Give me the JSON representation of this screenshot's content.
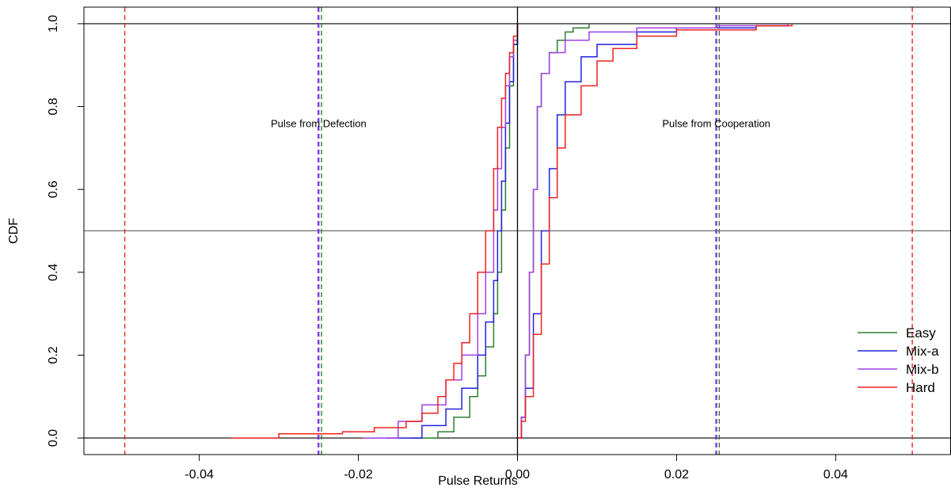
{
  "chart_data": {
    "type": "line",
    "title": "",
    "xlabel": "Pulse Returns",
    "ylabel": "CDF",
    "xlim": [
      -0.0545,
      0.0545
    ],
    "ylim": [
      -0.04,
      1.04
    ],
    "x_ticks": [
      -0.04,
      -0.02,
      0.0,
      0.02,
      0.04
    ],
    "x_tick_labels": [
      "-0.04",
      "-0.02",
      "0.00",
      "0.02",
      "0.04"
    ],
    "y_ticks": [
      0.0,
      0.2,
      0.4,
      0.6,
      0.8,
      1.0
    ],
    "y_tick_labels": [
      "0.0",
      "0.2",
      "0.4",
      "0.6",
      "0.8",
      "1.0"
    ],
    "grid": false,
    "legend_position": "bottom-right",
    "reference_lines": {
      "horizontal": [
        0.0,
        0.5,
        1.0
      ],
      "vertical_solid": [
        0.0
      ]
    },
    "annotations": [
      {
        "text": "Pulse from Defection",
        "x": -0.025,
        "y": 0.75
      },
      {
        "text": "Pulse from Cooperation",
        "x": 0.025,
        "y": 0.75
      }
    ],
    "series": [
      {
        "name": "Easy",
        "color": "#2e7d2e",
        "step": true,
        "neg": [
          [
            -0.0135,
            0.0
          ],
          [
            -0.01,
            0.015
          ],
          [
            -0.008,
            0.05
          ],
          [
            -0.006,
            0.1
          ],
          [
            -0.005,
            0.15
          ],
          [
            -0.004,
            0.22
          ],
          [
            -0.003,
            0.3
          ],
          [
            -0.0025,
            0.4
          ],
          [
            -0.002,
            0.55
          ],
          [
            -0.0015,
            0.7
          ],
          [
            -0.001,
            0.85
          ],
          [
            -0.0005,
            0.95
          ],
          [
            0.0,
            1.0
          ]
        ],
        "pos": [
          [
            0.0,
            0.0
          ],
          [
            0.0005,
            0.05
          ],
          [
            0.001,
            0.2
          ],
          [
            0.0015,
            0.4
          ],
          [
            0.002,
            0.6
          ],
          [
            0.0025,
            0.8
          ],
          [
            0.003,
            0.88
          ],
          [
            0.004,
            0.93
          ],
          [
            0.005,
            0.96
          ],
          [
            0.006,
            0.98
          ],
          [
            0.007,
            0.99
          ],
          [
            0.009,
            1.0
          ]
        ],
        "vlines": [
          -0.0245,
          0.0255
        ]
      },
      {
        "name": "Mix-a",
        "color": "#2222dd",
        "step": true,
        "neg": [
          [
            -0.0165,
            0.0
          ],
          [
            -0.012,
            0.03
          ],
          [
            -0.009,
            0.07
          ],
          [
            -0.007,
            0.12
          ],
          [
            -0.005,
            0.2
          ],
          [
            -0.004,
            0.28
          ],
          [
            -0.003,
            0.38
          ],
          [
            -0.0025,
            0.5
          ],
          [
            -0.002,
            0.62
          ],
          [
            -0.0015,
            0.76
          ],
          [
            -0.001,
            0.86
          ],
          [
            -0.0005,
            0.95
          ],
          [
            0.0,
            1.0
          ]
        ],
        "pos": [
          [
            0.0,
            0.0
          ],
          [
            0.0005,
            0.05
          ],
          [
            0.001,
            0.12
          ],
          [
            0.002,
            0.3
          ],
          [
            0.003,
            0.5
          ],
          [
            0.004,
            0.65
          ],
          [
            0.005,
            0.78
          ],
          [
            0.006,
            0.86
          ],
          [
            0.008,
            0.92
          ],
          [
            0.01,
            0.95
          ],
          [
            0.015,
            0.98
          ],
          [
            0.02,
            0.99
          ],
          [
            0.03,
            0.995
          ],
          [
            0.034,
            1.0
          ]
        ],
        "vlines": [
          -0.025,
          0.025
        ]
      },
      {
        "name": "Mix-b",
        "color": "#a040e0",
        "step": true,
        "neg": [
          [
            -0.0195,
            0.0
          ],
          [
            -0.015,
            0.04
          ],
          [
            -0.012,
            0.08
          ],
          [
            -0.009,
            0.14
          ],
          [
            -0.007,
            0.2
          ],
          [
            -0.005,
            0.3
          ],
          [
            -0.004,
            0.4
          ],
          [
            -0.003,
            0.55
          ],
          [
            -0.0025,
            0.65
          ],
          [
            -0.002,
            0.75
          ],
          [
            -0.0015,
            0.85
          ],
          [
            -0.001,
            0.92
          ],
          [
            -0.0005,
            0.96
          ],
          [
            0.0,
            1.0
          ]
        ],
        "pos": [
          [
            0.0,
            0.0
          ],
          [
            0.0005,
            0.05
          ],
          [
            0.001,
            0.2
          ],
          [
            0.0015,
            0.4
          ],
          [
            0.002,
            0.6
          ],
          [
            0.0025,
            0.8
          ],
          [
            0.003,
            0.88
          ],
          [
            0.004,
            0.93
          ],
          [
            0.006,
            0.96
          ],
          [
            0.009,
            0.98
          ],
          [
            0.015,
            0.99
          ],
          [
            0.025,
            0.995
          ],
          [
            0.034,
            1.0
          ]
        ],
        "vlines": [
          -0.025,
          0.025
        ]
      },
      {
        "name": "Hard",
        "color": "#ee2222",
        "step": true,
        "neg": [
          [
            -0.036,
            0.0
          ],
          [
            -0.03,
            0.01
          ],
          [
            -0.022,
            0.015
          ],
          [
            -0.018,
            0.025
          ],
          [
            -0.014,
            0.04
          ],
          [
            -0.012,
            0.06
          ],
          [
            -0.01,
            0.1
          ],
          [
            -0.009,
            0.14
          ],
          [
            -0.008,
            0.18
          ],
          [
            -0.007,
            0.23
          ],
          [
            -0.006,
            0.3
          ],
          [
            -0.005,
            0.4
          ],
          [
            -0.004,
            0.5
          ],
          [
            -0.003,
            0.65
          ],
          [
            -0.0025,
            0.75
          ],
          [
            -0.002,
            0.82
          ],
          [
            -0.0015,
            0.88
          ],
          [
            -0.001,
            0.93
          ],
          [
            -0.0005,
            0.97
          ],
          [
            0.0,
            1.0
          ]
        ],
        "pos": [
          [
            0.0,
            0.0
          ],
          [
            0.0005,
            0.04
          ],
          [
            0.001,
            0.1
          ],
          [
            0.002,
            0.25
          ],
          [
            0.003,
            0.42
          ],
          [
            0.004,
            0.58
          ],
          [
            0.005,
            0.7
          ],
          [
            0.006,
            0.78
          ],
          [
            0.008,
            0.85
          ],
          [
            0.01,
            0.91
          ],
          [
            0.012,
            0.94
          ],
          [
            0.015,
            0.97
          ],
          [
            0.02,
            0.985
          ],
          [
            0.03,
            0.995
          ],
          [
            0.0345,
            1.0
          ]
        ],
        "vlines": [
          -0.0495,
          0.0495
        ]
      }
    ]
  }
}
